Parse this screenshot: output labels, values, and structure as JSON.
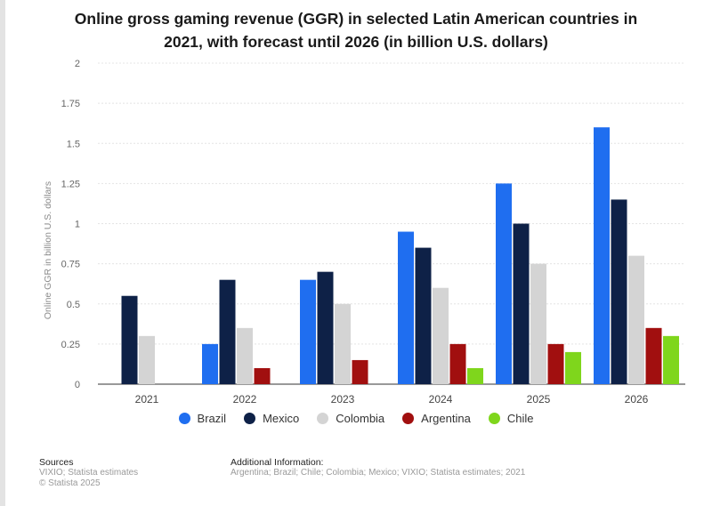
{
  "title": "Online gross gaming revenue (GGR) in selected Latin American countries in 2021, with forecast until 2026 (in billion U.S. dollars)",
  "chart_data": {
    "type": "bar",
    "title": "Online gross gaming revenue (GGR) in selected Latin American countries in 2021, with forecast until 2026 (in billion U.S. dollars)",
    "xlabel": "",
    "ylabel": "Online GGR in billion U.S. dollars",
    "ylim": [
      0,
      2
    ],
    "yticks": [
      "0",
      "0.25",
      "0.5",
      "0.75",
      "1",
      "1.25",
      "1.5",
      "1.75",
      "2"
    ],
    "categories": [
      "2021",
      "2022",
      "2023",
      "2024",
      "2025",
      "2026"
    ],
    "series": [
      {
        "name": "Brazil",
        "color": "#1f6ef0",
        "values": [
          null,
          0.25,
          0.65,
          0.95,
          1.25,
          1.6
        ]
      },
      {
        "name": "Mexico",
        "color": "#0e2147",
        "values": [
          0.55,
          0.65,
          0.7,
          0.85,
          1.0,
          1.15
        ]
      },
      {
        "name": "Colombia",
        "color": "#d4d4d4",
        "values": [
          0.3,
          0.35,
          0.5,
          0.6,
          0.75,
          0.8
        ]
      },
      {
        "name": "Argentina",
        "color": "#a10f0f",
        "values": [
          null,
          0.1,
          0.15,
          0.25,
          0.25,
          0.35
        ]
      },
      {
        "name": "Chile",
        "color": "#7fd61c",
        "values": [
          null,
          null,
          null,
          0.1,
          0.2,
          0.3
        ]
      }
    ],
    "grid": true,
    "legend_position": "bottom"
  },
  "footer": {
    "sources_heading": "Sources",
    "sources_line1": "VIXIO; Statista estimates",
    "sources_line2": "© Statista 2025",
    "info_heading": "Additional Information:",
    "info_text": "Argentina; Brazil; Chile; Colombia; Mexico; VIXIO; Statista estimates; 2021"
  }
}
